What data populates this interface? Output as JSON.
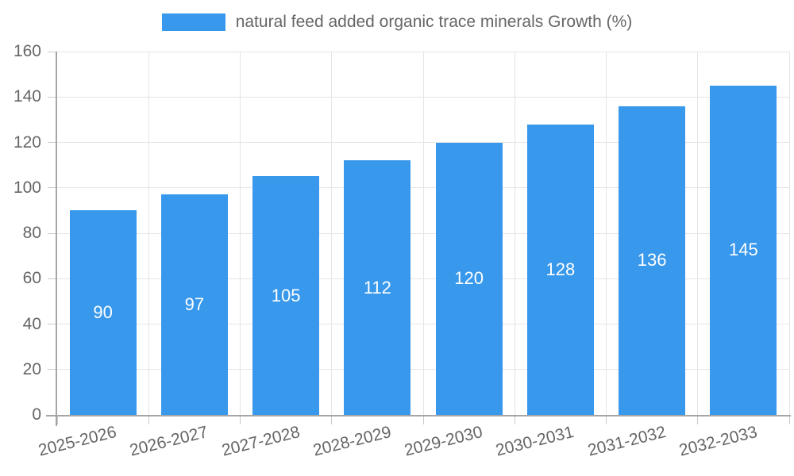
{
  "legend": {
    "label": "natural feed added organic trace minerals Growth (%)"
  },
  "chart_data": {
    "type": "bar",
    "title": "natural feed added organic trace minerals Growth (%)",
    "categories": [
      "2025-2026",
      "2026-2027",
      "2027-2028",
      "2028-2029",
      "2029-2030",
      "2030-2031",
      "2031-2032",
      "2032-2033"
    ],
    "values": [
      90,
      97,
      105,
      112,
      120,
      128,
      136,
      145
    ],
    "series": [
      {
        "name": "natural feed added organic trace minerals Growth (%)",
        "values": [
          90,
          97,
          105,
          112,
          120,
          128,
          136,
          145
        ]
      }
    ],
    "xlabel": "",
    "ylabel": "",
    "ylim": [
      0,
      160
    ],
    "yticks": [
      0,
      20,
      40,
      60,
      80,
      100,
      120,
      140,
      160
    ],
    "grid": true,
    "legend_position": "top",
    "value_labels_inside_bars": true,
    "x_label_rotation_deg": -14,
    "colors": {
      "bar": "#3898EC",
      "grid": "#E5E5E5",
      "axis": "#A6A6A6",
      "tick": "#C9C9C9",
      "text": "#666666",
      "value_label": "#FFFFFF",
      "background": "#FFFFFF"
    }
  }
}
